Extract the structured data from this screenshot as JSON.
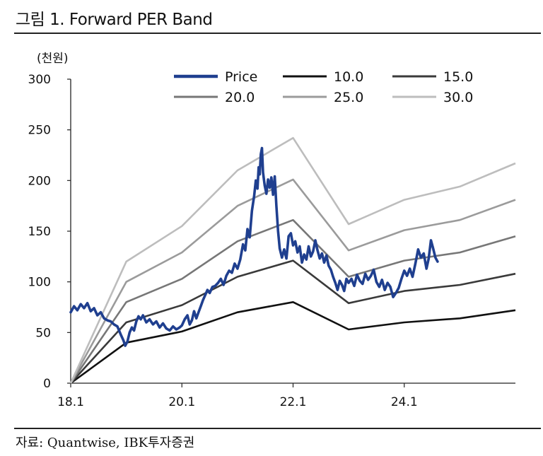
{
  "header": {
    "title": "그림 1. Forward PER Band"
  },
  "footer": {
    "source": "자료: Quantwise, IBK투자증권"
  },
  "chart_data": {
    "type": "line",
    "title": "Forward PER Band",
    "ylabel": "(천원)",
    "xlabel": "",
    "ylim": [
      0,
      300
    ],
    "xlim": [
      2018.0,
      2026.0
    ],
    "yticks": [
      0,
      50,
      100,
      150,
      200,
      250,
      300
    ],
    "xticks": [
      {
        "label": "18.1",
        "value": 2018.0
      },
      {
        "label": "20.1",
        "value": 2020.0
      },
      {
        "label": "22.1",
        "value": 2022.0
      },
      {
        "label": "24.1",
        "value": 2024.0
      }
    ],
    "legend_position": "top",
    "colors": {
      "price": "#1f3f8f",
      "band_10": "#111111",
      "band_15": "#3a3a3a",
      "band_20": "#777777",
      "band_25": "#9b9b9b",
      "band_30": "#bdbdbd"
    },
    "series": [
      {
        "name": "Price",
        "color": "#1f3f8f",
        "points": [
          [
            2018.0,
            70
          ],
          [
            2018.06,
            76
          ],
          [
            2018.12,
            72
          ],
          [
            2018.18,
            78
          ],
          [
            2018.24,
            74
          ],
          [
            2018.3,
            79
          ],
          [
            2018.36,
            71
          ],
          [
            2018.42,
            74
          ],
          [
            2018.48,
            67
          ],
          [
            2018.54,
            70
          ],
          [
            2018.6,
            64
          ],
          [
            2018.66,
            62
          ],
          [
            2018.72,
            61
          ],
          [
            2018.78,
            58
          ],
          [
            2018.84,
            56
          ],
          [
            2018.9,
            48
          ],
          [
            2018.95,
            42
          ],
          [
            2018.98,
            37
          ],
          [
            2019.02,
            41
          ],
          [
            2019.06,
            50
          ],
          [
            2019.1,
            55
          ],
          [
            2019.14,
            52
          ],
          [
            2019.18,
            61
          ],
          [
            2019.22,
            66
          ],
          [
            2019.26,
            63
          ],
          [
            2019.3,
            67
          ],
          [
            2019.36,
            60
          ],
          [
            2019.42,
            63
          ],
          [
            2019.48,
            58
          ],
          [
            2019.54,
            61
          ],
          [
            2019.6,
            55
          ],
          [
            2019.66,
            59
          ],
          [
            2019.72,
            54
          ],
          [
            2019.78,
            52
          ],
          [
            2019.84,
            56
          ],
          [
            2019.9,
            53
          ],
          [
            2019.96,
            55
          ],
          [
            2020.0,
            57
          ],
          [
            2020.05,
            63
          ],
          [
            2020.1,
            67
          ],
          [
            2020.14,
            58
          ],
          [
            2020.18,
            62
          ],
          [
            2020.22,
            71
          ],
          [
            2020.26,
            64
          ],
          [
            2020.3,
            70
          ],
          [
            2020.34,
            76
          ],
          [
            2020.38,
            82
          ],
          [
            2020.42,
            87
          ],
          [
            2020.46,
            92
          ],
          [
            2020.5,
            89
          ],
          [
            2020.55,
            95
          ],
          [
            2020.6,
            96
          ],
          [
            2020.65,
            99
          ],
          [
            2020.7,
            103
          ],
          [
            2020.75,
            97
          ],
          [
            2020.8,
            106
          ],
          [
            2020.85,
            111
          ],
          [
            2020.9,
            109
          ],
          [
            2020.95,
            118
          ],
          [
            2021.0,
            113
          ],
          [
            2021.05,
            122
          ],
          [
            2021.1,
            137
          ],
          [
            2021.14,
            131
          ],
          [
            2021.18,
            152
          ],
          [
            2021.22,
            144
          ],
          [
            2021.26,
            170
          ],
          [
            2021.3,
            185
          ],
          [
            2021.33,
            200
          ],
          [
            2021.36,
            192
          ],
          [
            2021.38,
            213
          ],
          [
            2021.4,
            206
          ],
          [
            2021.42,
            226
          ],
          [
            2021.44,
            232
          ],
          [
            2021.46,
            208
          ],
          [
            2021.49,
            195
          ],
          [
            2021.52,
            187
          ],
          [
            2021.55,
            201
          ],
          [
            2021.58,
            193
          ],
          [
            2021.61,
            203
          ],
          [
            2021.64,
            186
          ],
          [
            2021.67,
            204
          ],
          [
            2021.7,
            175
          ],
          [
            2021.73,
            150
          ],
          [
            2021.76,
            133
          ],
          [
            2021.8,
            124
          ],
          [
            2021.84,
            132
          ],
          [
            2021.88,
            123
          ],
          [
            2021.92,
            145
          ],
          [
            2021.96,
            148
          ],
          [
            2022.0,
            136
          ],
          [
            2022.04,
            140
          ],
          [
            2022.08,
            129
          ],
          [
            2022.12,
            135
          ],
          [
            2022.16,
            119
          ],
          [
            2022.2,
            127
          ],
          [
            2022.24,
            122
          ],
          [
            2022.28,
            135
          ],
          [
            2022.32,
            125
          ],
          [
            2022.36,
            130
          ],
          [
            2022.4,
            141
          ],
          [
            2022.44,
            131
          ],
          [
            2022.48,
            123
          ],
          [
            2022.52,
            128
          ],
          [
            2022.56,
            119
          ],
          [
            2022.6,
            126
          ],
          [
            2022.64,
            116
          ],
          [
            2022.68,
            112
          ],
          [
            2022.72,
            105
          ],
          [
            2022.76,
            99
          ],
          [
            2022.8,
            92
          ],
          [
            2022.84,
            101
          ],
          [
            2022.88,
            97
          ],
          [
            2022.92,
            91
          ],
          [
            2022.96,
            103
          ],
          [
            2023.0,
            99
          ],
          [
            2023.05,
            103
          ],
          [
            2023.1,
            96
          ],
          [
            2023.15,
            107
          ],
          [
            2023.2,
            101
          ],
          [
            2023.25,
            98
          ],
          [
            2023.3,
            108
          ],
          [
            2023.35,
            102
          ],
          [
            2023.4,
            106
          ],
          [
            2023.45,
            112
          ],
          [
            2023.5,
            100
          ],
          [
            2023.55,
            95
          ],
          [
            2023.6,
            102
          ],
          [
            2023.65,
            92
          ],
          [
            2023.7,
            99
          ],
          [
            2023.75,
            95
          ],
          [
            2023.8,
            85
          ],
          [
            2023.85,
            89
          ],
          [
            2023.9,
            94
          ],
          [
            2023.95,
            103
          ],
          [
            2024.0,
            111
          ],
          [
            2024.05,
            106
          ],
          [
            2024.1,
            113
          ],
          [
            2024.15,
            105
          ],
          [
            2024.2,
            118
          ],
          [
            2024.25,
            132
          ],
          [
            2024.3,
            124
          ],
          [
            2024.35,
            128
          ],
          [
            2024.4,
            113
          ],
          [
            2024.44,
            123
          ],
          [
            2024.48,
            141
          ],
          [
            2024.52,
            133
          ],
          [
            2024.56,
            124
          ],
          [
            2024.6,
            120
          ]
        ]
      },
      {
        "name": "10.0",
        "color": "#111111",
        "points": [
          [
            2018.0,
            0
          ],
          [
            2019.0,
            40
          ],
          [
            2020.0,
            51
          ],
          [
            2021.0,
            70
          ],
          [
            2022.0,
            80
          ],
          [
            2023.0,
            53
          ],
          [
            2024.0,
            60
          ],
          [
            2025.0,
            64
          ],
          [
            2026.0,
            72
          ]
        ]
      },
      {
        "name": "15.0",
        "color": "#3a3a3a",
        "points": [
          [
            2018.0,
            0
          ],
          [
            2019.0,
            60
          ],
          [
            2020.0,
            77
          ],
          [
            2021.0,
            105
          ],
          [
            2022.0,
            121
          ],
          [
            2023.0,
            79
          ],
          [
            2024.0,
            91
          ],
          [
            2025.0,
            97
          ],
          [
            2026.0,
            108
          ]
        ]
      },
      {
        "name": "20.0",
        "color": "#777777",
        "points": [
          [
            2018.0,
            0
          ],
          [
            2019.0,
            80
          ],
          [
            2020.0,
            103
          ],
          [
            2021.0,
            140
          ],
          [
            2022.0,
            161
          ],
          [
            2023.0,
            105
          ],
          [
            2024.0,
            121
          ],
          [
            2025.0,
            129
          ],
          [
            2026.0,
            145
          ]
        ]
      },
      {
        "name": "25.0",
        "color": "#9b9b9b",
        "points": [
          [
            2018.0,
            0
          ],
          [
            2019.0,
            100
          ],
          [
            2020.0,
            129
          ],
          [
            2021.0,
            175
          ],
          [
            2022.0,
            201
          ],
          [
            2023.0,
            131
          ],
          [
            2024.0,
            151
          ],
          [
            2025.0,
            161
          ],
          [
            2026.0,
            181
          ]
        ]
      },
      {
        "name": "30.0",
        "color": "#bdbdbd",
        "points": [
          [
            2018.0,
            0
          ],
          [
            2019.0,
            120
          ],
          [
            2020.0,
            155
          ],
          [
            2021.0,
            210
          ],
          [
            2022.0,
            242
          ],
          [
            2023.0,
            157
          ],
          [
            2024.0,
            181
          ],
          [
            2025.0,
            194
          ],
          [
            2026.0,
            217
          ]
        ]
      }
    ]
  }
}
